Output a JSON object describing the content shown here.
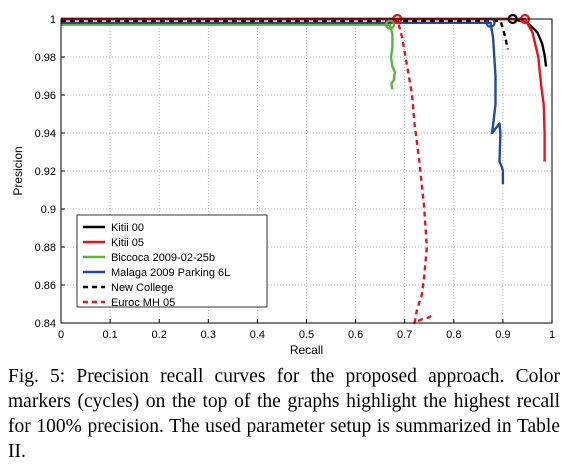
{
  "chart_data": {
    "type": "line",
    "title": "",
    "xlabel": "Recall",
    "ylabel": "Presicion",
    "xlim": [
      0,
      1
    ],
    "ylim": [
      0.84,
      1.0
    ],
    "xticks": [
      0,
      0.1,
      0.2,
      0.3,
      0.4,
      0.5,
      0.6,
      0.7,
      0.8,
      0.9,
      1
    ],
    "yticks": [
      0.84,
      0.86,
      0.88,
      0.9,
      0.92,
      0.94,
      0.96,
      0.98,
      1
    ],
    "xtick_labels": [
      "0",
      "0.1",
      "0.2",
      "0.3",
      "0.4",
      "0.5",
      "0.6",
      "0.7",
      "0.8",
      "0.9",
      "1"
    ],
    "ytick_labels": [
      "0.84",
      "0.86",
      "0.88",
      "0.9",
      "0.92",
      "0.94",
      "0.96",
      "0.98",
      "1"
    ],
    "grid": "dotted",
    "legend_position": "lower-left",
    "series": [
      {
        "name": "Kitii 00",
        "color": "#000000",
        "dash": "solid",
        "x": [
          0,
          0.92,
          0.95,
          0.97,
          0.98,
          0.985,
          0.988
        ],
        "y": [
          1.0,
          1.0,
          0.998,
          0.993,
          0.987,
          0.981,
          0.975
        ],
        "marker": [
          0.92,
          1.0
        ]
      },
      {
        "name": "Kitii 05",
        "color": "#e8141c",
        "dash": "solid",
        "x": [
          0,
          0.945,
          0.96,
          0.972,
          0.978,
          0.983,
          0.985,
          0.985
        ],
        "y": [
          1.0,
          1.0,
          0.993,
          0.98,
          0.965,
          0.955,
          0.94,
          0.925
        ],
        "marker": [
          0.945,
          1.0
        ]
      },
      {
        "name": "Biccoca 2009-02-25b",
        "color": "#5ab33c",
        "dash": "solid",
        "x": [
          0,
          0.67,
          0.675,
          0.675,
          0.672,
          0.675,
          0.68,
          0.678,
          0.673,
          0.675
        ],
        "y": [
          0.997,
          0.997,
          0.992,
          0.985,
          0.98,
          0.975,
          0.972,
          0.968,
          0.966,
          0.963
        ],
        "marker": [
          0.67,
          0.997
        ]
      },
      {
        "name": "Malaga 2009 Parking 6L",
        "color": "#214aa3",
        "dash": "solid",
        "x": [
          0,
          0.875,
          0.88,
          0.885,
          0.885,
          0.878,
          0.893,
          0.895,
          0.893,
          0.898,
          0.9,
          0.9
        ],
        "y": [
          0.998,
          0.998,
          0.99,
          0.97,
          0.955,
          0.94,
          0.945,
          0.94,
          0.925,
          0.922,
          0.92,
          0.913
        ],
        "marker": [
          0.875,
          0.998
        ]
      },
      {
        "name": "New College",
        "color": "#000000",
        "dash": "dashed",
        "x": [
          0,
          0.895,
          0.9,
          0.905,
          0.91
        ],
        "y": [
          0.999,
          0.999,
          0.995,
          0.99,
          0.984
        ]
      },
      {
        "name": "Euroc MH 05",
        "color": "#e8141c",
        "dash": "dashed",
        "x": [
          0,
          0.685,
          0.695,
          0.705,
          0.715,
          0.72,
          0.73,
          0.74,
          0.745,
          0.74,
          0.735,
          0.725,
          0.72,
          0.735,
          0.75,
          0.76
        ],
        "y": [
          1.0,
          1.0,
          0.99,
          0.975,
          0.96,
          0.945,
          0.925,
          0.9,
          0.88,
          0.865,
          0.855,
          0.847,
          0.84,
          0.842,
          0.843,
          0.845
        ],
        "marker": [
          0.685,
          1.0
        ]
      }
    ]
  },
  "caption": "Fig. 5: Precision recall curves for the proposed approach. Color markers (cycles) on the top of the graphs highlight the highest recall for 100% precision. The used parameter setup is summarized in Table II."
}
